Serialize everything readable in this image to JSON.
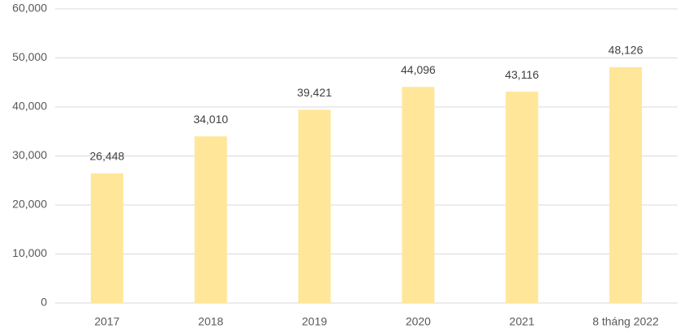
{
  "chart_data": {
    "type": "bar",
    "categories": [
      "2017",
      "2018",
      "2019",
      "2020",
      "2021",
      "8 tháng 2022"
    ],
    "values": [
      26448,
      34010,
      39421,
      44096,
      43116,
      48126
    ],
    "value_labels": [
      "26,448",
      "34,010",
      "39,421",
      "44,096",
      "43,116",
      "48,126"
    ],
    "color": "#ffe699",
    "ylim": [
      0,
      60000
    ],
    "yticks": [
      0,
      {
        "value": 10000,
        "label": "10,000"
      },
      {
        "value": 20000,
        "label": "20,000"
      },
      {
        "value": 30000,
        "label": "30,000"
      },
      {
        "value": 40000,
        "label": "40,000"
      },
      {
        "value": 50000,
        "label": "50,000"
      },
      {
        "value": 60000,
        "label": "60,000"
      }
    ],
    "grid": true
  }
}
